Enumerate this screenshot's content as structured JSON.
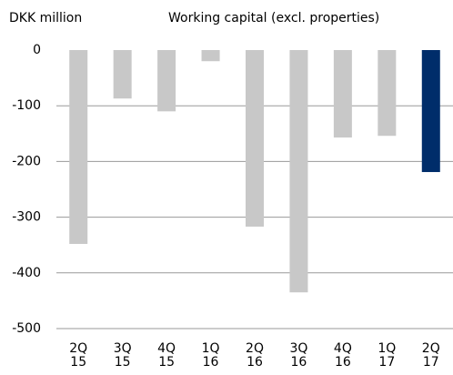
{
  "chart_data": {
    "type": "bar",
    "title": "Working capital (excl. properties)",
    "y_label": "DKK million",
    "categories": [
      [
        "2Q",
        "15"
      ],
      [
        "3Q",
        "15"
      ],
      [
        "4Q",
        "15"
      ],
      [
        "1Q",
        "16"
      ],
      [
        "2Q",
        "16"
      ],
      [
        "3Q",
        "16"
      ],
      [
        "4Q",
        "16"
      ],
      [
        "1Q",
        "17"
      ],
      [
        "2Q",
        "17"
      ]
    ],
    "values": [
      -348,
      -87,
      -110,
      -20,
      -317,
      -435,
      -157,
      -154,
      -219
    ],
    "colors": [
      "#c8c8c8",
      "#c8c8c8",
      "#c8c8c8",
      "#c8c8c8",
      "#c8c8c8",
      "#c8c8c8",
      "#c8c8c8",
      "#c8c8c8",
      "#002d6a"
    ],
    "ylim": [
      -500,
      0
    ],
    "yticks": [
      0,
      -100,
      -200,
      -300,
      -400,
      -500
    ],
    "grid": true
  }
}
